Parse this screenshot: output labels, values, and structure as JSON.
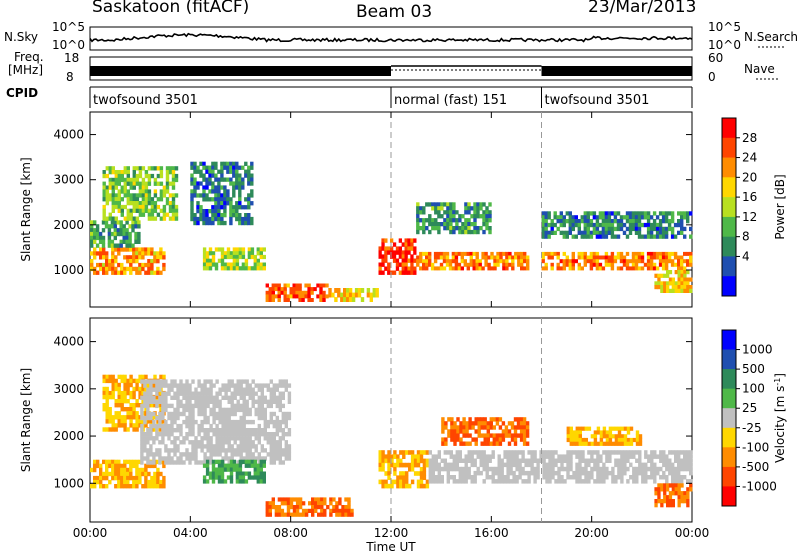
{
  "header": {
    "station": "Saskatoon (fitACF)",
    "beam": "Beam 03",
    "date": "23/Mar/2013"
  },
  "summary_panels": {
    "nsky_label": "N.Sky",
    "nsky_ticks": [
      "10^5",
      "10^0"
    ],
    "nsearch_label": "N.Search",
    "nsearch_ticks": [
      "10^5",
      "10^0"
    ],
    "freq_label_1": "Freq.",
    "freq_label_2": "[MHz]",
    "freq_ticks": [
      "18",
      "8"
    ],
    "nave_label": "Nave",
    "nave_ticks": [
      "60",
      "0"
    ],
    "cpid_label": "CPID",
    "cpid_segments": [
      {
        "name": "twofsound 3501",
        "start_hour": 0,
        "end_hour": 12
      },
      {
        "name": "normal (fast) 151",
        "start_hour": 12,
        "end_hour": 18
      },
      {
        "name": "twofsound 3501",
        "start_hour": 18,
        "end_hour": 24
      }
    ]
  },
  "colors": {
    "power": [
      "#0000ff",
      "#1f4fb0",
      "#2e8a5a",
      "#4fb848",
      "#b8e020",
      "#ffd700",
      "#ff8c00",
      "#ff4500",
      "#ff0000"
    ],
    "velocity": [
      "#0000ff",
      "#1f4fb0",
      "#2e8a5a",
      "#4fb848",
      "#c0c0c0",
      "#ffd700",
      "#ff8c00",
      "#ff4500",
      "#ff0000"
    ]
  },
  "chart_data": [
    {
      "type": "heatmap",
      "quantity": "Power",
      "ylabel": "Slant Range [km]",
      "colorbar_label": "Power [dB]",
      "colorbar_ticks": [
        "4",
        "8",
        "12",
        "16",
        "20",
        "24",
        "28"
      ],
      "value_range": [
        0,
        32
      ],
      "xlim": [
        0,
        24
      ],
      "ylim": [
        180,
        4500
      ],
      "y_ticks": [
        1000,
        2000,
        3000,
        4000
      ],
      "mode_change_hours": [
        12,
        18
      ],
      "regions": [
        {
          "t0": 0.0,
          "t1": 3.0,
          "r0": 900,
          "r1": 1500,
          "value": 22
        },
        {
          "t0": 0.0,
          "t1": 2.0,
          "r0": 1500,
          "r1": 2100,
          "value": 10
        },
        {
          "t0": 0.5,
          "t1": 3.5,
          "r0": 2100,
          "r1": 3300,
          "value": 14
        },
        {
          "t0": 4.5,
          "t1": 7.0,
          "r0": 1000,
          "r1": 1500,
          "value": 16
        },
        {
          "t0": 4.0,
          "t1": 6.5,
          "r0": 2000,
          "r1": 3400,
          "value": 8
        },
        {
          "t0": 7.0,
          "t1": 9.5,
          "r0": 300,
          "r1": 700,
          "value": 26
        },
        {
          "t0": 9.5,
          "t1": 11.5,
          "r0": 300,
          "r1": 600,
          "value": 20
        },
        {
          "t0": 11.5,
          "t1": 13.0,
          "r0": 900,
          "r1": 1700,
          "value": 28
        },
        {
          "t0": 13.0,
          "t1": 17.5,
          "r0": 1000,
          "r1": 1400,
          "value": 24
        },
        {
          "t0": 13.0,
          "t1": 16.0,
          "r0": 1800,
          "r1": 2500,
          "value": 10
        },
        {
          "t0": 18.0,
          "t1": 24.0,
          "r0": 1000,
          "r1": 1400,
          "value": 24
        },
        {
          "t0": 18.0,
          "t1": 24.0,
          "r0": 1700,
          "r1": 2300,
          "value": 8
        },
        {
          "t0": 22.5,
          "t1": 24.0,
          "r0": 500,
          "r1": 1000,
          "value": 20
        }
      ]
    },
    {
      "type": "heatmap",
      "quantity": "Velocity",
      "ylabel": "Slant Range [km]",
      "colorbar_label": "Velocity [m s",
      "colorbar_label_exp": "-1",
      "colorbar_label_close": "]",
      "colorbar_ticks": [
        "1000",
        "500",
        "100",
        "25",
        "-25",
        "-100",
        "-500",
        "-1000"
      ],
      "xlabel": "Time UT",
      "x_ticks": [
        "00:00",
        "04:00",
        "08:00",
        "12:00",
        "16:00",
        "20:00",
        "00:00"
      ],
      "xlim": [
        0,
        24
      ],
      "ylim": [
        180,
        4500
      ],
      "y_ticks": [
        1000,
        2000,
        3000,
        4000
      ],
      "mode_change_hours": [
        12,
        18
      ],
      "regions": [
        {
          "t0": 0.0,
          "t1": 3.0,
          "r0": 900,
          "r1": 1500,
          "value": -100
        },
        {
          "t0": 0.5,
          "t1": 3.0,
          "r0": 2100,
          "r1": 3300,
          "value": -100
        },
        {
          "t0": 2.0,
          "t1": 8.0,
          "r0": 1400,
          "r1": 3200,
          "value": 0
        },
        {
          "t0": 4.5,
          "t1": 7.0,
          "r0": 1000,
          "r1": 1500,
          "value": 100
        },
        {
          "t0": 7.0,
          "t1": 10.5,
          "r0": 300,
          "r1": 700,
          "value": -500
        },
        {
          "t0": 11.5,
          "t1": 13.5,
          "r0": 900,
          "r1": 1700,
          "value": -100
        },
        {
          "t0": 13.5,
          "t1": 24.0,
          "r0": 1000,
          "r1": 1700,
          "value": 0
        },
        {
          "t0": 14.0,
          "t1": 17.5,
          "r0": 1800,
          "r1": 2400,
          "value": -500
        },
        {
          "t0": 19.0,
          "t1": 22.0,
          "r0": 1800,
          "r1": 2200,
          "value": -100
        },
        {
          "t0": 22.5,
          "t1": 24.0,
          "r0": 500,
          "r1": 1000,
          "value": -500
        }
      ]
    }
  ]
}
